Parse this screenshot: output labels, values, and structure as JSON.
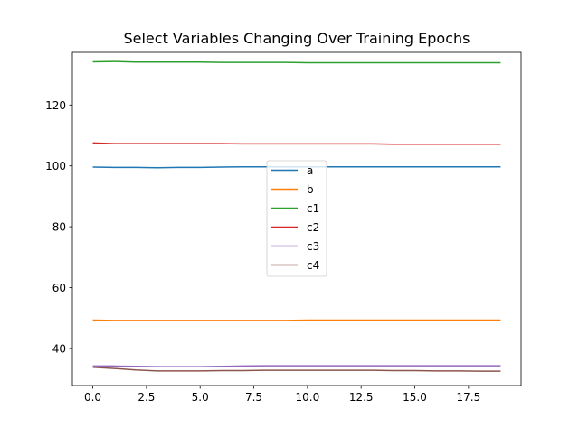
{
  "chart_data": {
    "type": "line",
    "title": "Select Variables Changing Over Training Epochs",
    "xlabel": "",
    "ylabel": "",
    "xlim": [
      -0.95,
      19.95
    ],
    "ylim": [
      27.8,
      137.3
    ],
    "x_ticks": [
      0.0,
      2.5,
      5.0,
      7.5,
      10.0,
      12.5,
      15.0,
      17.5
    ],
    "x_tick_labels": [
      "0.0",
      "2.5",
      "5.0",
      "7.5",
      "10.0",
      "12.5",
      "15.0",
      "17.5"
    ],
    "y_ticks": [
      40,
      60,
      80,
      100,
      120
    ],
    "y_tick_labels": [
      "40",
      "60",
      "80",
      "100",
      "120"
    ],
    "grid": false,
    "legend_position": "center",
    "x": [
      0,
      1,
      2,
      3,
      4,
      5,
      6,
      7,
      8,
      9,
      10,
      11,
      12,
      13,
      14,
      15,
      16,
      17,
      18,
      19
    ],
    "series": [
      {
        "name": "a",
        "color": "#1f77b4",
        "values": [
          99.6,
          99.5,
          99.5,
          99.4,
          99.5,
          99.5,
          99.6,
          99.7,
          99.7,
          99.7,
          99.7,
          99.7,
          99.7,
          99.7,
          99.7,
          99.7,
          99.7,
          99.7,
          99.7,
          99.7
        ]
      },
      {
        "name": "b",
        "color": "#ff7f0e",
        "values": [
          49.3,
          49.2,
          49.2,
          49.2,
          49.2,
          49.2,
          49.2,
          49.2,
          49.2,
          49.2,
          49.3,
          49.3,
          49.3,
          49.3,
          49.3,
          49.3,
          49.3,
          49.3,
          49.3,
          49.3
        ]
      },
      {
        "name": "c1",
        "color": "#2ca02c",
        "values": [
          134.2,
          134.3,
          134.1,
          134.1,
          134.1,
          134.1,
          134.0,
          134.0,
          134.0,
          134.0,
          133.9,
          133.9,
          133.9,
          133.9,
          133.9,
          133.9,
          133.9,
          133.9,
          133.9,
          133.9
        ]
      },
      {
        "name": "c2",
        "color": "#d62728",
        "values": [
          107.5,
          107.3,
          107.3,
          107.3,
          107.3,
          107.3,
          107.3,
          107.2,
          107.2,
          107.2,
          107.2,
          107.2,
          107.2,
          107.2,
          107.1,
          107.1,
          107.1,
          107.1,
          107.1,
          107.1
        ]
      },
      {
        "name": "c3",
        "color": "#9467bd",
        "values": [
          34.2,
          34.2,
          34.1,
          34.0,
          34.0,
          34.0,
          34.1,
          34.2,
          34.3,
          34.3,
          34.3,
          34.3,
          34.3,
          34.3,
          34.3,
          34.3,
          34.3,
          34.3,
          34.3,
          34.3
        ]
      },
      {
        "name": "c4",
        "color": "#8c564b",
        "values": [
          33.8,
          33.4,
          32.9,
          32.6,
          32.6,
          32.6,
          32.7,
          32.7,
          32.8,
          32.8,
          32.8,
          32.8,
          32.8,
          32.8,
          32.7,
          32.7,
          32.6,
          32.6,
          32.5,
          32.5
        ]
      }
    ]
  }
}
